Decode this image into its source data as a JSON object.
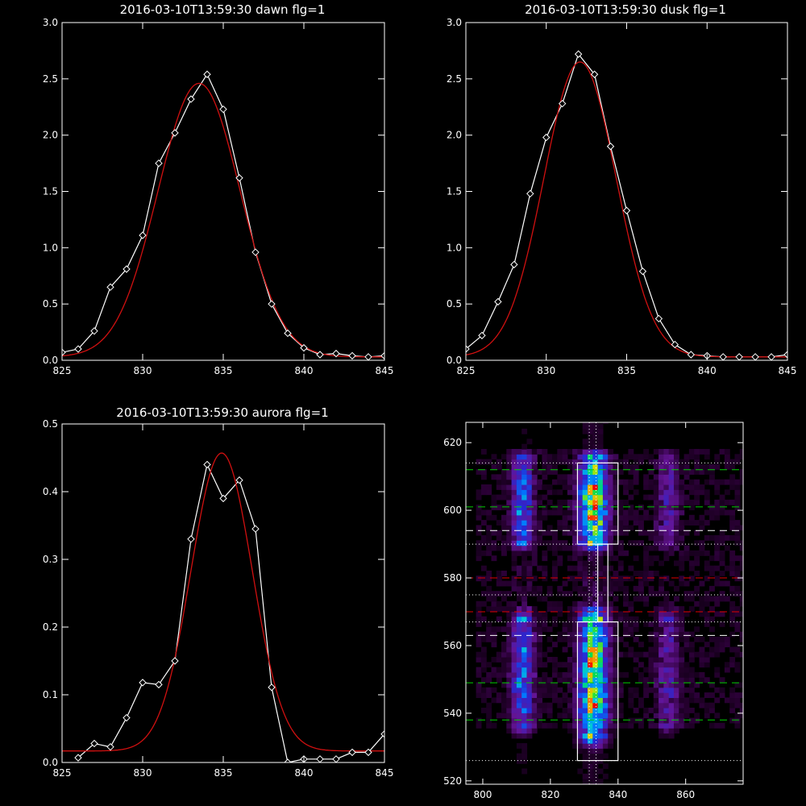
{
  "colors": {
    "background": "#000000",
    "axes": "#ffffff",
    "data_line": "#ffffff",
    "fit_line": "#d01010",
    "green_marker": "#00d000",
    "red_marker": "#e00000",
    "white_marker": "#ffffff"
  },
  "chart_data": [
    {
      "type": "line",
      "title": "2016-03-10T13:59:30 dawn flg=1",
      "xlim": [
        825,
        845
      ],
      "ylim": [
        0,
        3.0
      ],
      "xticks": [
        825,
        830,
        835,
        840,
        845
      ],
      "xtick_labels": [
        "825",
        "830",
        "835",
        "840",
        "845"
      ],
      "yticks": [
        0,
        0.5,
        1.0,
        1.5,
        2.0,
        2.5,
        3.0
      ],
      "ytick_labels": [
        "0.0",
        "0.5",
        "1.0",
        "1.5",
        "2.0",
        "2.5",
        "3.0"
      ],
      "series": [
        {
          "role": "data",
          "markers": "diamond",
          "x": [
            825,
            826,
            827,
            828,
            829,
            830,
            831,
            832,
            833,
            834,
            835,
            836,
            837,
            838,
            839,
            840,
            841,
            842,
            843,
            844,
            845
          ],
          "y": [
            0.07,
            0.1,
            0.26,
            0.65,
            0.81,
            1.11,
            1.75,
            2.02,
            2.32,
            2.54,
            2.23,
            1.62,
            0.96,
            0.5,
            0.24,
            0.11,
            0.05,
            0.06,
            0.04,
            0.03,
            0.04
          ]
        },
        {
          "role": "fit",
          "gaussian": {
            "amplitude": 2.43,
            "center": 833.5,
            "sigma": 2.55,
            "offset": 0.03
          }
        }
      ]
    },
    {
      "type": "line",
      "title": "2016-03-10T13:59:30 dusk flg=1",
      "xlim": [
        825,
        845
      ],
      "ylim": [
        0,
        3.0
      ],
      "xticks": [
        825,
        830,
        835,
        840,
        845
      ],
      "xtick_labels": [
        "825",
        "830",
        "835",
        "840",
        "845"
      ],
      "yticks": [
        0,
        0.5,
        1.0,
        1.5,
        2.0,
        2.5,
        3.0
      ],
      "ytick_labels": [
        "0.0",
        "0.5",
        "1.0",
        "1.5",
        "2.0",
        "2.5",
        "3.0"
      ],
      "series": [
        {
          "role": "data",
          "markers": "diamond",
          "x": [
            825,
            826,
            827,
            828,
            829,
            830,
            831,
            832,
            833,
            834,
            835,
            836,
            837,
            838,
            839,
            840,
            841,
            842,
            843,
            844,
            845
          ],
          "y": [
            0.1,
            0.22,
            0.52,
            0.85,
            1.48,
            1.98,
            2.28,
            2.72,
            2.54,
            1.9,
            1.33,
            0.79,
            0.37,
            0.14,
            0.05,
            0.04,
            0.03,
            0.03,
            0.03,
            0.03,
            0.05
          ]
        },
        {
          "role": "fit",
          "gaussian": {
            "amplitude": 2.62,
            "center": 832.1,
            "sigma": 2.25,
            "offset": 0.03
          }
        }
      ]
    },
    {
      "type": "line",
      "title": "2016-03-10T13:59:30 aurora flg=1",
      "xlim": [
        825,
        845
      ],
      "ylim": [
        0,
        0.5
      ],
      "xticks": [
        825,
        830,
        835,
        840,
        845
      ],
      "xtick_labels": [
        "825",
        "830",
        "835",
        "840",
        "845"
      ],
      "yticks": [
        0,
        0.1,
        0.2,
        0.3,
        0.4,
        0.5
      ],
      "ytick_labels": [
        "0.0",
        "0.1",
        "0.2",
        "0.3",
        "0.4",
        "0.5"
      ],
      "series": [
        {
          "role": "data",
          "markers": "diamond",
          "x": [
            826,
            827,
            828,
            829,
            830,
            831,
            832,
            833,
            834,
            835,
            836,
            837,
            838,
            839,
            840,
            841,
            842,
            843,
            844,
            845
          ],
          "y": [
            0.007,
            0.028,
            0.023,
            0.066,
            0.118,
            0.115,
            0.15,
            0.33,
            0.44,
            0.39,
            0.417,
            0.345,
            0.111,
            0.0,
            0.005,
            0.005,
            0.005,
            0.015,
            0.015,
            0.042
          ]
        },
        {
          "role": "fit",
          "gaussian": {
            "amplitude": 0.44,
            "center": 834.9,
            "sigma": 1.9,
            "offset": 0.017
          }
        }
      ]
    },
    {
      "type": "heatmap",
      "title": "",
      "xlim": [
        795,
        877
      ],
      "ylim": [
        519,
        626
      ],
      "xticks": [
        800,
        820,
        840,
        860
      ],
      "xtick_labels": [
        "800",
        "820",
        "840",
        "860"
      ],
      "yticks": [
        520,
        540,
        560,
        580,
        600,
        620
      ],
      "ytick_labels": [
        "520",
        "540",
        "560",
        "580",
        "600",
        "620"
      ],
      "bands": [
        {
          "x_center": 811,
          "x_halfwidth": 4,
          "intensity": 0.55,
          "y_ranges": [
            [
              590,
              614
            ],
            [
              536,
              567
            ]
          ]
        },
        {
          "x_center": 832,
          "x_halfwidth": 5,
          "intensity": 1.0,
          "y_ranges": [
            [
              590,
              614
            ],
            [
              533,
              567
            ]
          ]
        },
        {
          "x_center": 854,
          "x_halfwidth": 4,
          "intensity": 0.3,
          "y_ranges": [
            [
              590,
              614
            ],
            [
              536,
              567
            ]
          ]
        }
      ],
      "vertical_lines_dotted": [
        831.5,
        833.5
      ],
      "horizontal_lines": [
        {
          "y": 612,
          "style": "dashed",
          "color": "green"
        },
        {
          "y": 601,
          "style": "dashed",
          "color": "green"
        },
        {
          "y": 594,
          "style": "dashed",
          "color": "white"
        },
        {
          "y": 580,
          "style": "dashed",
          "color": "red"
        },
        {
          "y": 570,
          "style": "dashed",
          "color": "red"
        },
        {
          "y": 563,
          "style": "dashed",
          "color": "white"
        },
        {
          "y": 549,
          "style": "dashed",
          "color": "green"
        },
        {
          "y": 538,
          "style": "dashed",
          "color": "green"
        },
        {
          "y": 614,
          "style": "dotted",
          "color": "white"
        },
        {
          "y": 590,
          "style": "dotted",
          "color": "white"
        },
        {
          "y": 575,
          "style": "dotted",
          "color": "white"
        },
        {
          "y": 567,
          "style": "dotted",
          "color": "white"
        },
        {
          "y": 526,
          "style": "dotted",
          "color": "white"
        }
      ],
      "boxes": [
        {
          "x": [
            828,
            840
          ],
          "y": [
            590,
            614
          ]
        },
        {
          "x": [
            828,
            840
          ],
          "y": [
            526,
            567
          ]
        },
        {
          "x": [
            834,
            837
          ],
          "y": [
            567,
            590
          ]
        }
      ]
    }
  ]
}
